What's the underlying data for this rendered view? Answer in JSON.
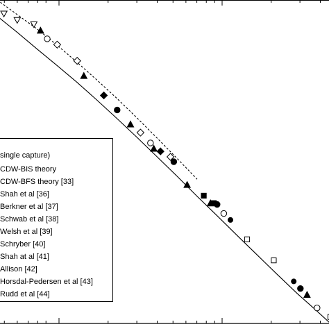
{
  "chart_data": {
    "type": "scatter",
    "xlabel": "",
    "ylabel": "",
    "ylim": [
      0,
      1
    ],
    "grid": false,
    "legend": {
      "placement": "left",
      "entries": [
        "single capture)",
        "CDW-BIS theory",
        "CDW-BFS theory [33]",
        "Shah et al [36]",
        "Berkner et al [37]",
        "Schwab et al [38]",
        "Welsh et al [39]",
        "Schryber [40]",
        "Shah at al [41]",
        "Allison [42]",
        "Horsdal-Pedersen et al [43]",
        "Rudd et al [44]"
      ]
    },
    "series": [
      {
        "name": "CDW-BIS theory",
        "style": "solid-line",
        "x": [
          0.0,
          0.06,
          0.12,
          0.18,
          0.24,
          0.3,
          0.36,
          0.42,
          0.48,
          0.54,
          0.6,
          0.66,
          0.72,
          0.78,
          0.84,
          0.9,
          0.96,
          1.0
        ],
        "y": [
          0.95,
          0.9,
          0.848,
          0.797,
          0.745,
          0.69,
          0.633,
          0.575,
          0.515,
          0.455,
          0.393,
          0.333,
          0.272,
          0.212,
          0.152,
          0.093,
          0.038,
          0.0
        ]
      },
      {
        "name": "CDW-BFS theory [33]",
        "style": "dashed-line",
        "x": [
          0.0,
          0.06,
          0.12,
          0.18,
          0.24,
          0.3,
          0.36,
          0.42,
          0.48,
          0.54,
          0.6
        ],
        "y": [
          1.0,
          0.955,
          0.91,
          0.86,
          0.807,
          0.752,
          0.695,
          0.635,
          0.573,
          0.51,
          0.446
        ]
      },
      {
        "name": "Shah et al [36]",
        "marker": "triangle-down-open",
        "x": [
          0.02,
          0.06,
          0.11
        ],
        "y": [
          0.958,
          0.938,
          0.925
        ]
      },
      {
        "name": "Berkner et al [37]",
        "marker": "circle-filled",
        "x": [
          0.36,
          0.53,
          0.66,
          0.91
        ],
        "y": [
          0.66,
          0.5,
          0.368,
          0.108
        ]
      },
      {
        "name": "Schwab et al [38]",
        "marker": "triangle-up-filled",
        "x": [
          0.13,
          0.26,
          0.4,
          0.47,
          0.57,
          0.64,
          0.93
        ],
        "y": [
          0.905,
          0.765,
          0.615,
          0.54,
          0.428,
          0.371,
          0.088
        ]
      },
      {
        "name": "Welsh et al [39]",
        "marker": "diamond-open",
        "x": [
          0.18,
          0.24,
          0.43,
          0.52
        ],
        "y": [
          0.862,
          0.812,
          0.59,
          0.515
        ]
      },
      {
        "name": "Schryber [40]",
        "marker": "square-open",
        "x": [
          0.75,
          0.83,
          1.0
        ],
        "y": [
          0.26,
          0.195,
          0.02
        ]
      },
      {
        "name": "Shah at al [41]",
        "marker": "circle-open",
        "x": [
          0.15,
          0.46,
          0.68,
          0.96
        ],
        "y": [
          0.88,
          0.558,
          0.34,
          0.048
        ]
      },
      {
        "name": "Allison [42]",
        "marker": "square-filled",
        "x": [
          0.62,
          0.65
        ],
        "y": [
          0.395,
          0.372
        ]
      },
      {
        "name": "Horsdal-Pedersen et al [43]",
        "marker": "diamond-filled",
        "x": [
          0.32,
          0.49
        ],
        "y": [
          0.705,
          0.532
        ]
      },
      {
        "name": "Rudd et al [44]",
        "marker": "circle-filled-small",
        "x": [
          0.7,
          0.89
        ],
        "y": [
          0.32,
          0.13
        ]
      }
    ]
  }
}
